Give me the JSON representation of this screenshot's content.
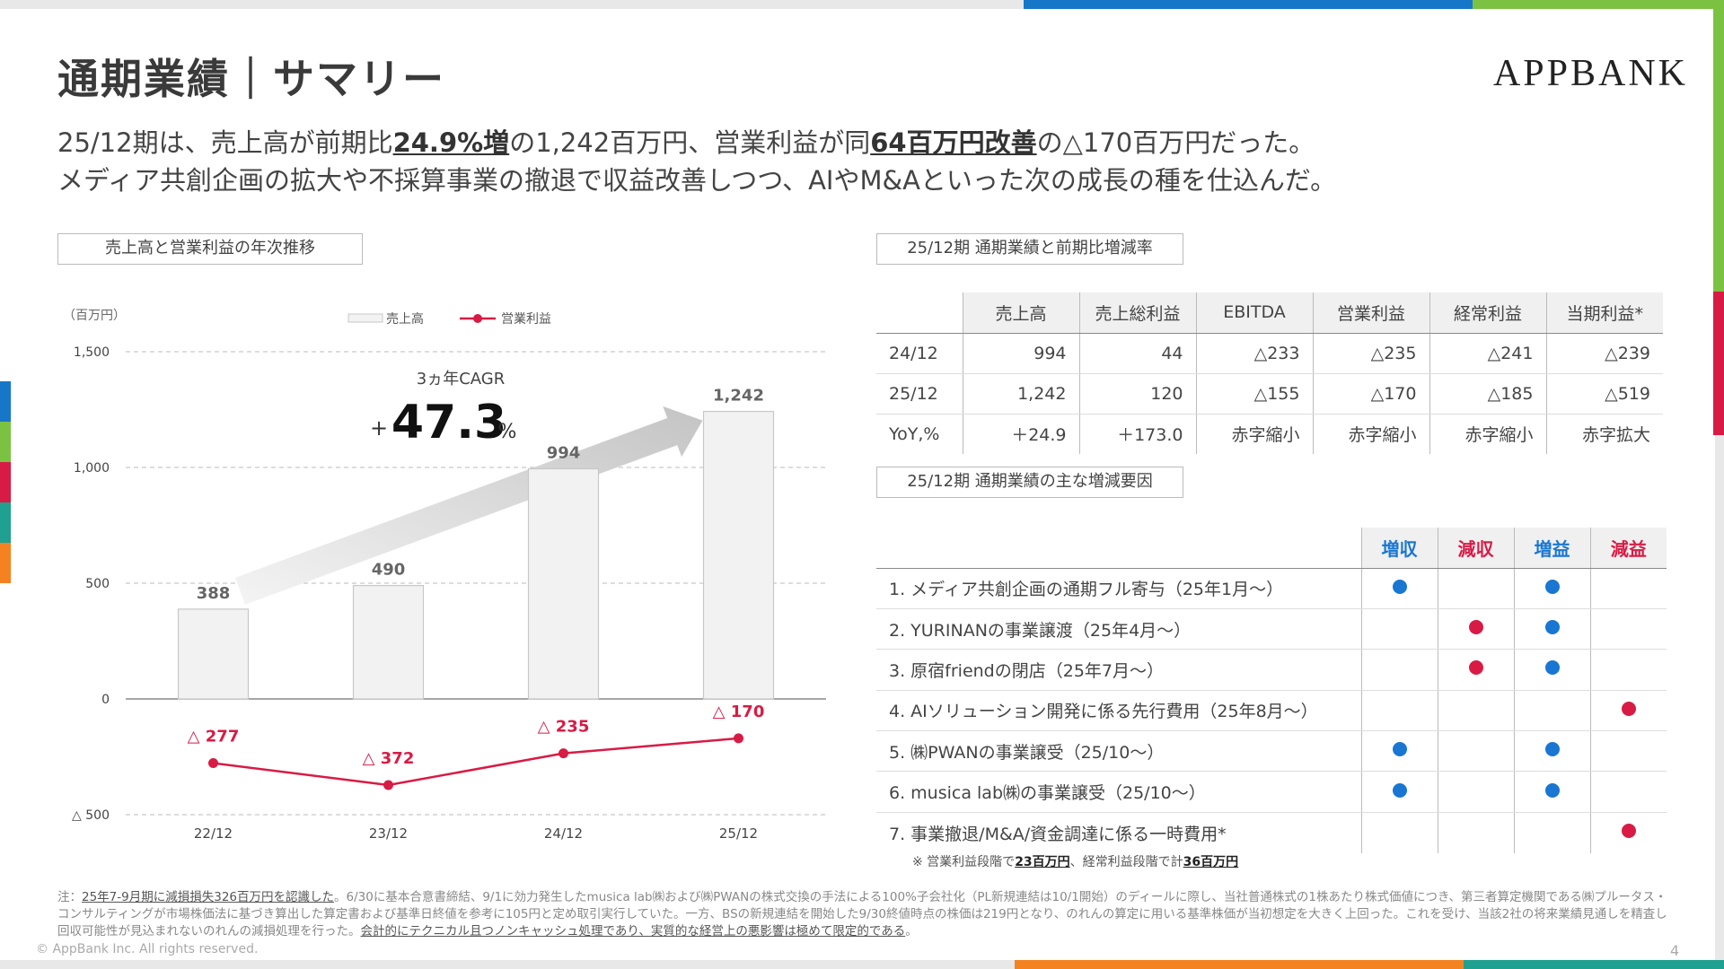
{
  "header": {
    "title": "通期業績｜サマリー",
    "logo": "APPBANK"
  },
  "summary": {
    "line1_a": "25/12期は、売上高が前期比",
    "line1_hl1": "24.9%増",
    "line1_b": "の1,242百万円、営業利益が同",
    "line1_hl2": "64百万円改善",
    "line1_c": "の△170百万円だった。",
    "line2": "メディア共創企画の拡大や不採算事業の撤退で収益改善しつつ、AIやM&Aといった次の成長の種を仕込んだ。"
  },
  "sections": {
    "chart_title": "売上高と営業利益の年次推移",
    "table_title": "25/12期 通期業績と前期比増減率",
    "factors_title": "25/12期 通期業績の主な増減要因"
  },
  "chart_data": {
    "type": "bar",
    "unit_label": "（百万円）",
    "categories": [
      "22/12",
      "23/12",
      "24/12",
      "25/12"
    ],
    "series": [
      {
        "name": "売上高",
        "type": "bar",
        "values": [
          388,
          490,
          994,
          1242
        ],
        "labels": [
          "388",
          "490",
          "994",
          "1,242"
        ]
      },
      {
        "name": "営業利益",
        "type": "line",
        "values": [
          -277,
          -372,
          -235,
          -170
        ],
        "labels": [
          "△ 277",
          "△ 372",
          "△ 235",
          "△ 170"
        ]
      }
    ],
    "y_ticks": [
      1500,
      1000,
      500,
      0,
      -500
    ],
    "y_tick_labels": [
      "1,500",
      "1,000",
      "500",
      "0",
      "△ 500"
    ],
    "ylim": [
      -500,
      1500
    ],
    "grid": true,
    "legend_position": "top",
    "colors": {
      "bar_fill": "#f2f2f2",
      "bar_stroke": "#c8c8c8",
      "line": "#d81b45"
    },
    "annotation": {
      "label": "3ヵ年CAGR",
      "sign": "+",
      "value": "47.3",
      "unit": "%"
    }
  },
  "results_table": {
    "columns": [
      "売上高",
      "売上総利益",
      "EBITDA",
      "営業利益",
      "経常利益",
      "当期利益*"
    ],
    "rows": [
      {
        "period": "24/12",
        "values": [
          "994",
          "44",
          "△233",
          "△235",
          "△241",
          "△239"
        ]
      },
      {
        "period": "25/12",
        "values": [
          "1,242",
          "120",
          "△155",
          "△170",
          "△185",
          "△519"
        ]
      },
      {
        "period": "YoY,%",
        "values": [
          "＋24.9",
          "＋173.0",
          "赤字縮小",
          "赤字縮小",
          "赤字縮小",
          "赤字拡大"
        ]
      }
    ]
  },
  "factors_table": {
    "columns": [
      "増収",
      "減収",
      "増益",
      "減益"
    ],
    "rows": [
      {
        "label": "1. メディア共創企画の通期フル寄与（25年1月～）",
        "marks": [
          true,
          false,
          true,
          false
        ]
      },
      {
        "label": "2. YURINANの事業譲渡（25年4月～）",
        "marks": [
          false,
          true,
          true,
          false
        ]
      },
      {
        "label": "3. 原宿friendの閉店（25年7月～）",
        "marks": [
          false,
          true,
          true,
          false
        ]
      },
      {
        "label": "4. AIソリューション開発に係る先行費用（25年8月～）",
        "marks": [
          false,
          false,
          false,
          true
        ]
      },
      {
        "label": "5. ㈱PWANの事業譲受（25/10～）",
        "marks": [
          true,
          false,
          true,
          false
        ]
      },
      {
        "label": "6. musica lab㈱の事業譲受（25/10～）",
        "marks": [
          true,
          false,
          true,
          false
        ]
      },
      {
        "label": "7. 事業撤退/M&A/資金調達に係る一時費用*",
        "marks": [
          false,
          false,
          false,
          true
        ]
      }
    ],
    "note_a": "※ 営業利益段階で",
    "note_b": "23百万円",
    "note_c": "、経常利益段階で計",
    "note_d": "36百万円"
  },
  "footnote": {
    "prefix": "注：",
    "underlined1": "25年7-9月期に減損損失326百万円を認識した",
    "body": "。6/30に基本合意書締結、9/1に効力発生したmusica lab㈱および㈱PWANの株式交換の手法による100%子会社化（PL新規連結は10/1開始）のディールに際し、当社普通株式の1株あたり株式価値につき、第三者算定機関である㈱プルータス・コンサルティングが市場株価法に基づき算出した算定書および基準日終値を参考に105円と定め取引実行していた。一方、BSの新規連結を開始した9/30終値時点の株価は219円となり、のれんの算定に用いる基準株価が当初想定を大きく上回った。これを受け、当該2社の将来業績見通しを精査し回収可能性が見込まれないのれんの減損処理を行った。",
    "underlined2": "会計的にテクニカル且つノンキャッシュ処理であり、実質的な経営上の悪影響は極めて限定的である",
    "suffix": "。"
  },
  "footer": {
    "copyright": "© AppBank Inc. All rights reserved.",
    "page": "4"
  }
}
